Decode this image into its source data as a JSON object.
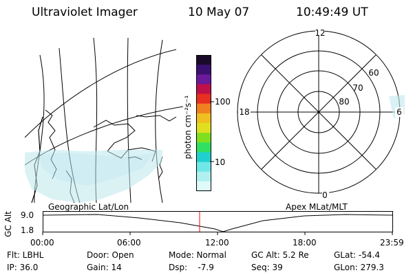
{
  "header": {
    "title": "Ultraviolet Imager",
    "date": "10 May 07",
    "time": "10:49:49 UT"
  },
  "geo_map": {
    "label": "Geographic Lat/Lon"
  },
  "colorbar": {
    "unit_label": "photon cm⁻²s⁻¹",
    "tick_100": "100",
    "tick_10": "10",
    "colors": [
      "#1a0a2a",
      "#3a1070",
      "#6a1a9a",
      "#c0104a",
      "#e83020",
      "#f08020",
      "#f0c020",
      "#e0e020",
      "#80e020",
      "#30e060",
      "#20d0d0",
      "#70e8e8",
      "#b0f0f0",
      "#e0fafa"
    ]
  },
  "polar": {
    "label": "Apex MLat/MLT",
    "mlt_top": "12",
    "mlt_left": "18",
    "mlt_right": "6",
    "mlt_bottom": "0",
    "lat_60": "60",
    "lat_70": "70",
    "lat_80": "80"
  },
  "alt_plot": {
    "ylabel": "GC Alt",
    "ytick_high": "9.0",
    "ytick_low": "1.8",
    "xticks": [
      "00:00",
      "06:00",
      "12:00",
      "18:00",
      "23:59"
    ],
    "marker_color": "#ff0000"
  },
  "info": {
    "flt": "Flt: LBHL",
    "ip": "IP: 36.0",
    "door": "Door: Open",
    "gain": "Gain: 14",
    "mode": "Mode: Normal",
    "dsp": "Dsp:    -7.9",
    "gcalt": "GC Alt: 5.2 Re",
    "seq": "Seq: 39",
    "glat": "GLat: -54.4",
    "glon": "GLon: 279.3"
  }
}
